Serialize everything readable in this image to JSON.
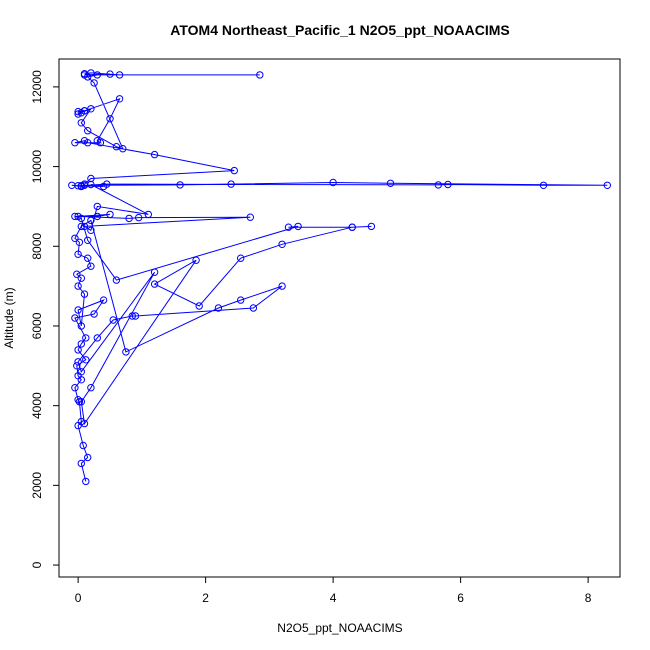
{
  "chart_data": {
    "type": "line",
    "title": "ATOM4 Northeast_Pacific_1 N2O5_ppt_NOAACIMS",
    "xlabel": "N2O5_ppt_NOAACIMS",
    "ylabel": "Altitude (m)",
    "xlim": [
      -0.3,
      8.5
    ],
    "ylim": [
      -300,
      12700
    ],
    "xticks": [
      0,
      2,
      4,
      6,
      8
    ],
    "yticks": [
      0,
      2000,
      4000,
      6000,
      8000,
      10000,
      12000
    ],
    "xtick_labels": [
      "0",
      "2",
      "4",
      "6",
      "8"
    ],
    "ytick_labels": [
      "0",
      "2000",
      "4000",
      "6000",
      "8000",
      "10000",
      "12000"
    ],
    "grid": false,
    "legend": "none",
    "color": "#0000ff",
    "series": [
      {
        "x": [
          0.12,
          0.05,
          0.15,
          0.08,
          0.0,
          0.05,
          0.02,
          0.0,
          -0.05,
          0.05,
          0.0,
          -0.02,
          0.12,
          0.0,
          0.05,
          0.12,
          -0.05,
          0.25,
          0.4,
          0.0,
          0.05,
          0.1,
          0.0,
          0.05,
          -0.02,
          0.2,
          0.15,
          0.0,
          0.02,
          -0.05,
          0.05,
          0.2,
          0.75,
          2.2,
          2.55,
          3.2,
          2.75,
          0.9,
          0.85,
          0.55,
          0.3,
          0.0,
          0.05,
          1.2,
          0.2,
          0.05,
          0.1,
          1.85,
          1.2,
          1.9,
          2.55,
          3.2,
          4.3,
          4.6,
          4.3,
          3.3,
          3.45,
          0.6,
          0.15,
          0.05,
          -0.05,
          0.3,
          0.5,
          0.0,
          0.8,
          0.95,
          2.7,
          0.1,
          0.2,
          0.3,
          1.1,
          0.2,
          0.4,
          0.05,
          0.1,
          1.6,
          2.4,
          4.0,
          4.9,
          8.3,
          7.3,
          5.8,
          5.65,
          0.45,
          0.0,
          -0.1,
          0.05,
          0.1,
          0.2,
          2.45,
          1.2,
          0.15,
          0.1,
          -0.05,
          0.35,
          0.3,
          0.5,
          0.65,
          0.1,
          0.05,
          0.0,
          0.1,
          0.0,
          0.2,
          0.05,
          0.15,
          0.6,
          0.7,
          0.25,
          0.15,
          0.3,
          0.5,
          0.1,
          2.85,
          0.65,
          0.2,
          0.1
        ],
        "y": [
          2100,
          2550,
          2700,
          3000,
          3500,
          3600,
          4100,
          4150,
          4450,
          4650,
          4750,
          5000,
          5150,
          5400,
          5550,
          5700,
          6200,
          6300,
          6650,
          6400,
          6000,
          6800,
          7000,
          7200,
          7300,
          7500,
          7700,
          7800,
          8100,
          8200,
          8500,
          8650,
          5350,
          6450,
          6650,
          7000,
          6450,
          6250,
          6250,
          6150,
          5700,
          5100,
          4850,
          7350,
          4450,
          4100,
          3550,
          7650,
          7050,
          6500,
          7700,
          8050,
          8480,
          8500,
          8480,
          8480,
          8500,
          7150,
          8150,
          8700,
          8750,
          8750,
          8800,
          8750,
          8700,
          8720,
          8730,
          8500,
          8400,
          9000,
          8800,
          9550,
          9500,
          9520,
          9530,
          9540,
          9560,
          9600,
          9580,
          9530,
          9530,
          9550,
          9540,
          9560,
          9520,
          9530,
          9500,
          9560,
          9700,
          9900,
          10300,
          10600,
          10650,
          10600,
          10600,
          10650,
          11200,
          11700,
          11400,
          11350,
          11380,
          11400,
          11320,
          11450,
          11100,
          10900,
          10500,
          10450,
          12100,
          12250,
          12300,
          12320,
          12300,
          12300,
          12300,
          12350,
          12330
        ]
      }
    ]
  }
}
